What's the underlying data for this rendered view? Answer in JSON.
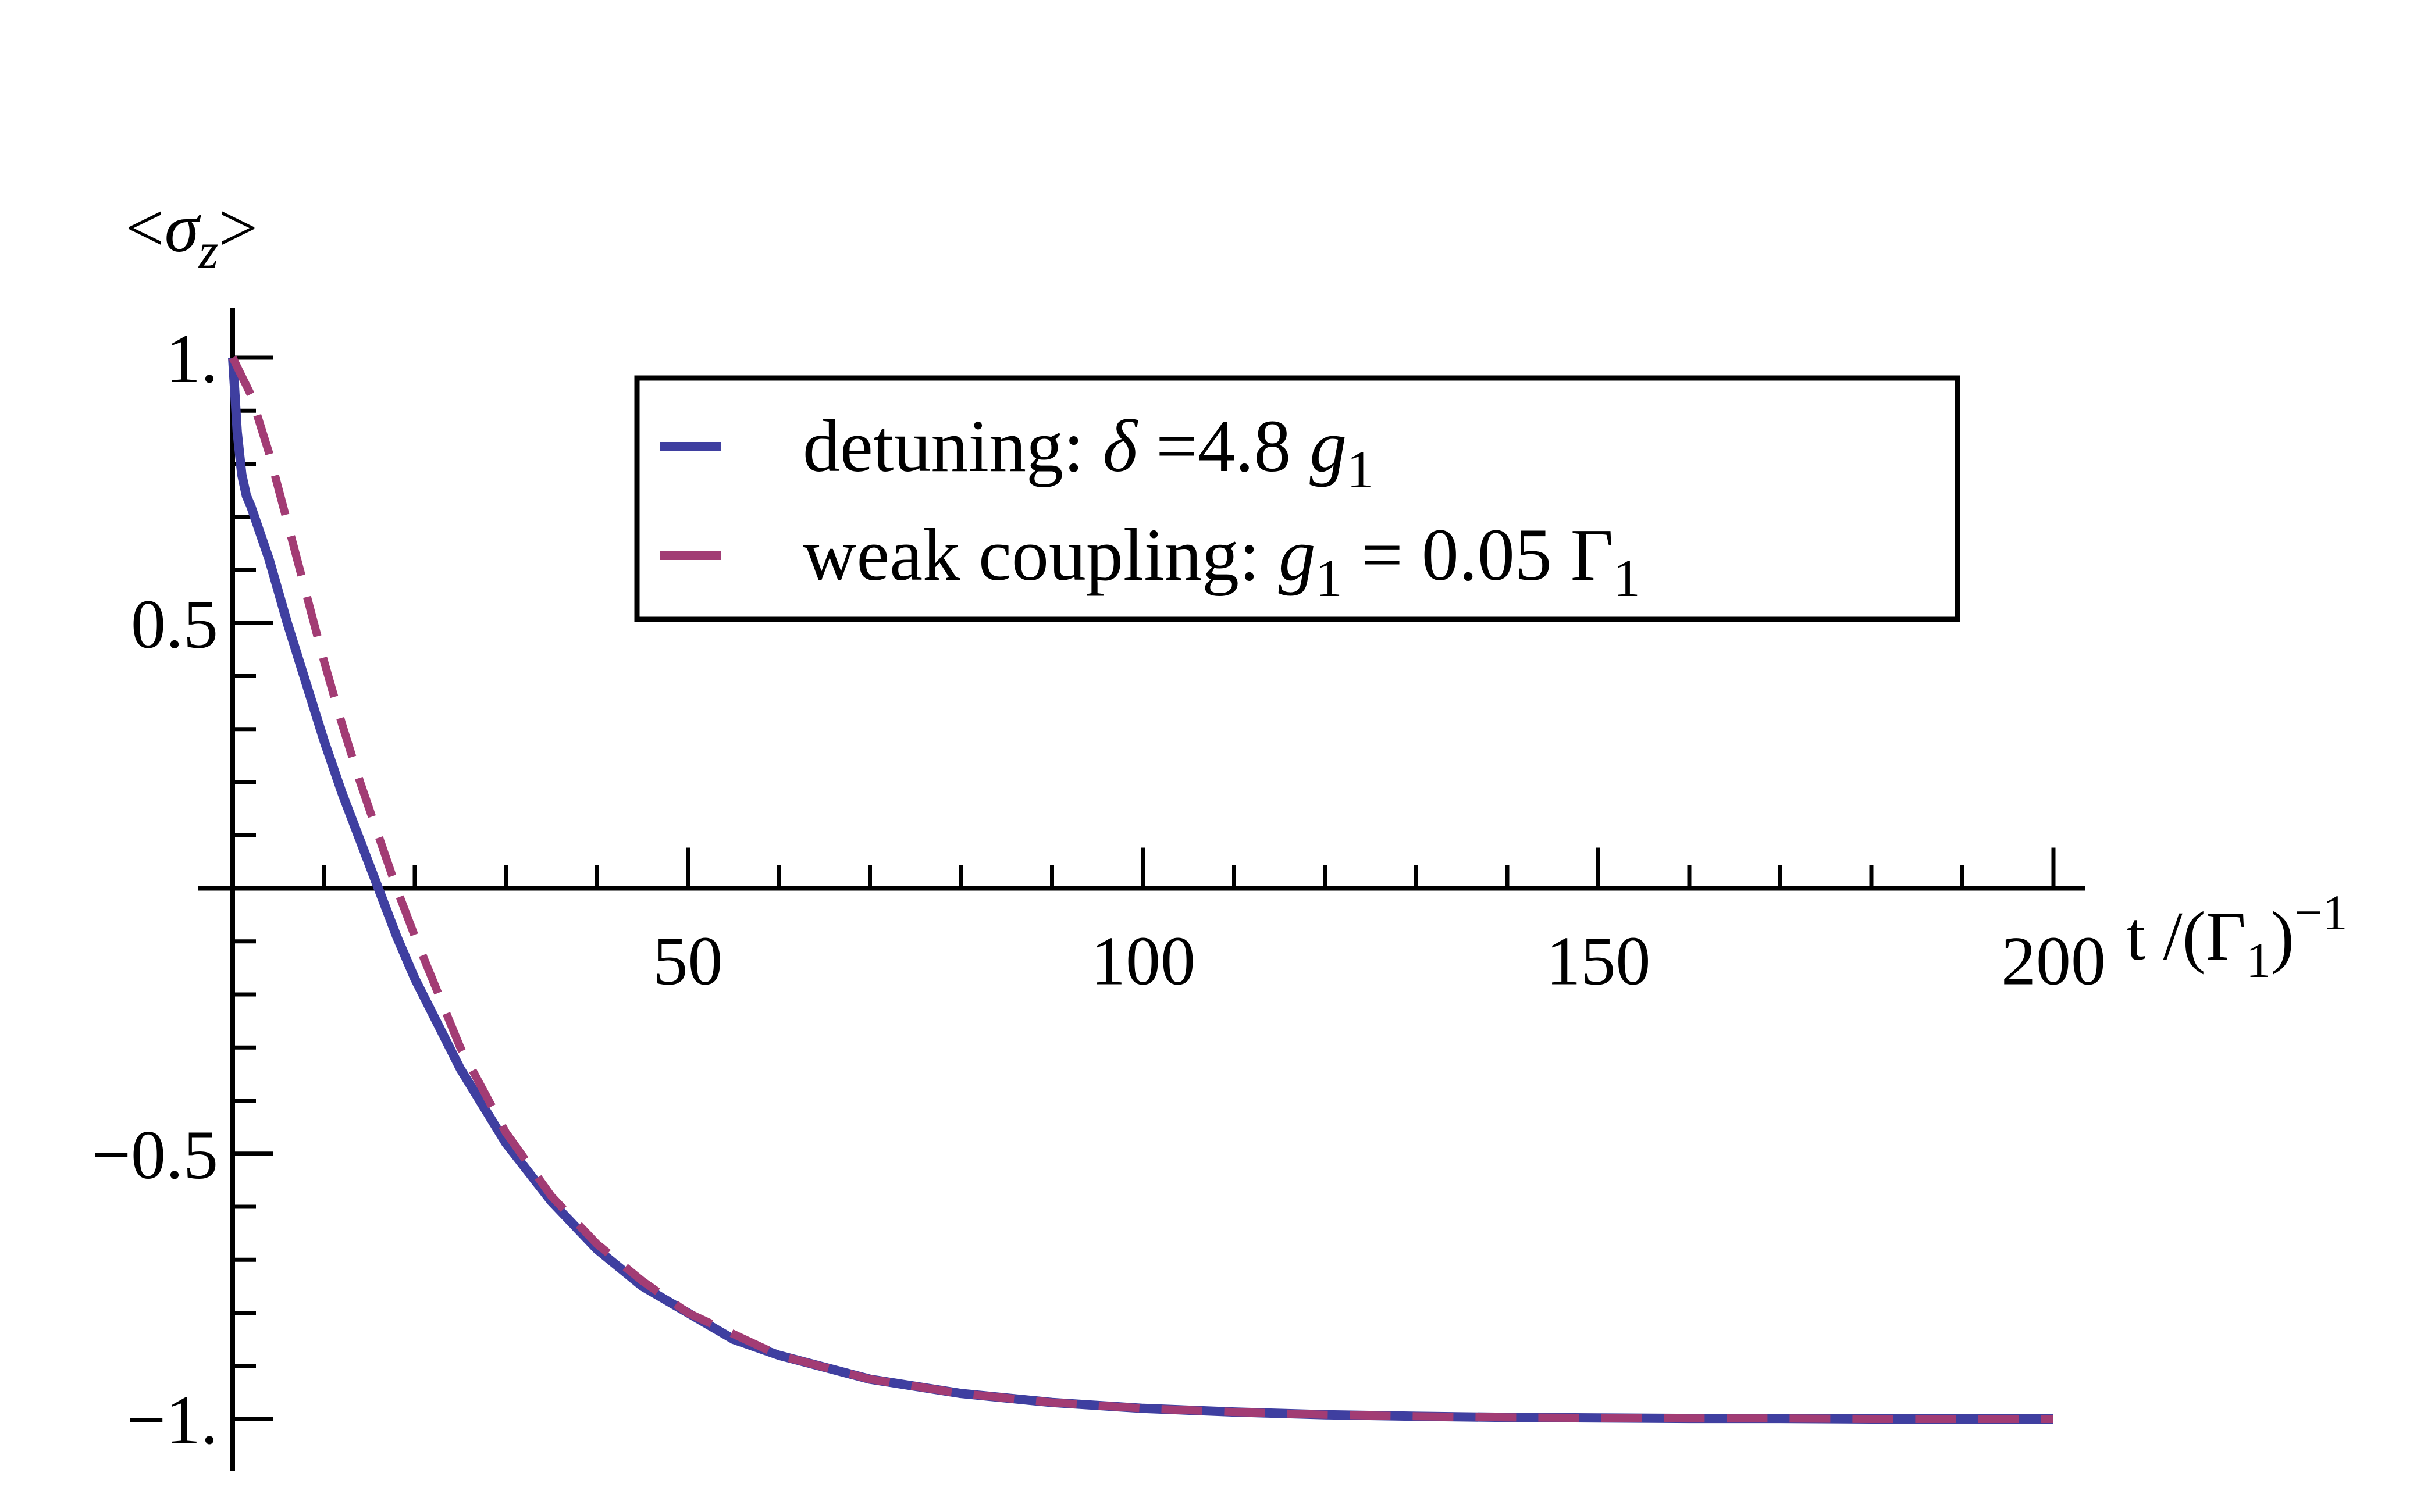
{
  "chart_data": {
    "type": "line",
    "xlim": [
      0,
      200
    ],
    "ylim": [
      -1,
      1
    ],
    "x_ticks": [
      {
        "value": 50,
        "label": "50"
      },
      {
        "value": 100,
        "label": "100"
      },
      {
        "value": 150,
        "label": "150"
      },
      {
        "value": 200,
        "label": "200"
      }
    ],
    "y_ticks": [
      {
        "value": 1,
        "label": "1."
      },
      {
        "value": 0.5,
        "label": "0.5"
      },
      {
        "value": -0.5,
        "label": "−0.5"
      },
      {
        "value": -1,
        "label": "−1."
      }
    ],
    "xlabel": {
      "main": "t /(Γ",
      "sub": "1",
      "close": ")",
      "sup": "−1"
    },
    "ylabel": {
      "open": "<",
      "symbol": "σ",
      "sub": "z",
      "close": ">"
    },
    "legend_position": "top-center",
    "series": [
      {
        "name": "detuning: δ =4.8 g1",
        "legend": {
          "text": "detuning: ",
          "symbol": "δ",
          "mid": " =4.8 ",
          "var": "g",
          "sub": "1"
        },
        "color": "#3f3fa0",
        "style": "solid",
        "x": [
          0,
          0.5,
          1,
          1.5,
          2,
          3,
          4,
          5,
          6,
          8,
          10,
          12,
          14,
          16,
          18,
          20,
          25,
          30,
          35,
          40,
          45,
          50,
          55,
          60,
          70,
          80,
          90,
          100,
          110,
          120,
          130,
          140,
          150,
          160,
          170,
          180,
          190,
          200
        ],
        "y": [
          1.0,
          0.86,
          0.78,
          0.74,
          0.72,
          0.67,
          0.62,
          0.56,
          0.5,
          0.39,
          0.28,
          0.18,
          0.09,
          0.0,
          -0.09,
          -0.17,
          -0.34,
          -0.48,
          -0.59,
          -0.68,
          -0.75,
          -0.8,
          -0.85,
          -0.88,
          -0.925,
          -0.952,
          -0.969,
          -0.98,
          -0.987,
          -0.992,
          -0.995,
          -0.997,
          -0.998,
          -0.999,
          -0.999,
          -1.0,
          -1.0,
          -1.0
        ]
      },
      {
        "name": "weak coupling: g1 = 0.05 Γ1",
        "legend": {
          "text": "weak coupling: ",
          "var": "g",
          "sub": "1",
          "mid": " = 0.05 Γ",
          "sub2": "1"
        },
        "color": "#a23c74",
        "style": "dashed",
        "x": [
          0,
          2,
          4,
          6,
          8,
          10,
          12,
          14,
          16,
          18,
          20,
          25,
          30,
          35,
          40,
          45,
          50,
          55,
          60,
          70,
          80,
          90,
          100,
          110,
          120,
          130,
          140,
          150,
          160,
          170,
          180,
          190,
          200
        ],
        "y": [
          1.0,
          0.93,
          0.82,
          0.69,
          0.56,
          0.43,
          0.31,
          0.2,
          0.1,
          0.0,
          -0.09,
          -0.3,
          -0.46,
          -0.58,
          -0.67,
          -0.74,
          -0.8,
          -0.84,
          -0.88,
          -0.925,
          -0.952,
          -0.969,
          -0.98,
          -0.987,
          -0.992,
          -0.995,
          -0.997,
          -0.998,
          -0.999,
          -0.999,
          -1.0,
          -1.0,
          -1.0
        ]
      }
    ]
  }
}
